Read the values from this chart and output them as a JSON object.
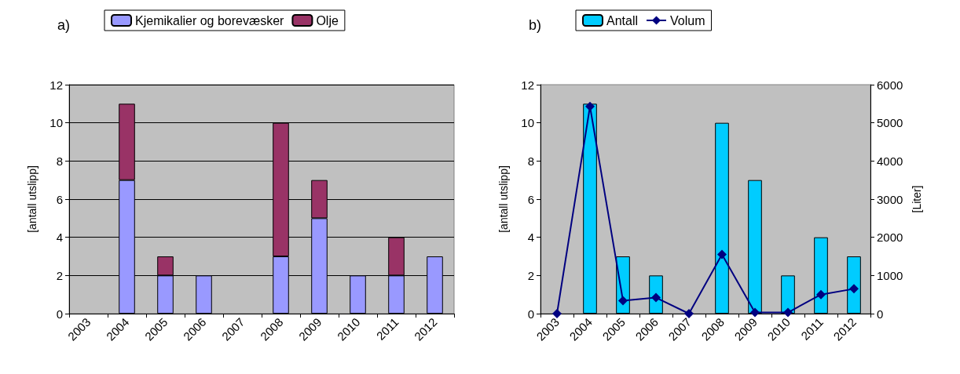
{
  "chart_data": [
    {
      "type": "bar",
      "title": "a)",
      "stacked": true,
      "categories": [
        "2003",
        "2004",
        "2005",
        "2006",
        "2007",
        "2008",
        "2009",
        "2010",
        "2011",
        "2012"
      ],
      "series": [
        {
          "name": "Kjemikalier og borevæsker",
          "color": "#9999ff",
          "values": [
            0,
            7,
            2,
            2,
            0,
            3,
            5,
            2,
            2,
            3
          ]
        },
        {
          "name": "Olje",
          "color": "#993366",
          "values": [
            0,
            4,
            1,
            0,
            0,
            7,
            2,
            0,
            2,
            0
          ]
        }
      ],
      "ylabel": "[antall utslipp]",
      "ylim": [
        0,
        12
      ],
      "yticks": [
        0,
        2,
        4,
        6,
        8,
        10,
        12
      ],
      "grid": "y",
      "legend": "top"
    },
    {
      "type": "bar",
      "title": "b)",
      "categories": [
        "2003",
        "2004",
        "2005",
        "2006",
        "2007",
        "2008",
        "2009",
        "2010",
        "2011",
        "2012"
      ],
      "series": [
        {
          "name": "Antall",
          "color": "#00ccff",
          "values": [
            0,
            11,
            3,
            2,
            0,
            10,
            7,
            2,
            4,
            3
          ]
        },
        {
          "name": "Volum",
          "type": "line",
          "axis": "y2",
          "color": "#000080",
          "marker": "diamond",
          "values": [
            0,
            5430,
            340,
            420,
            0,
            1550,
            30,
            30,
            500,
            650
          ]
        }
      ],
      "ylabel": "[antall utslipp]",
      "y2label": "[Liter]",
      "ylim": [
        0,
        12
      ],
      "yticks": [
        0,
        2,
        4,
        6,
        8,
        10,
        12
      ],
      "y2lim": [
        0,
        6000
      ],
      "y2ticks": [
        0,
        1000,
        2000,
        3000,
        4000,
        5000,
        6000
      ],
      "grid": false,
      "legend": "top"
    }
  ]
}
